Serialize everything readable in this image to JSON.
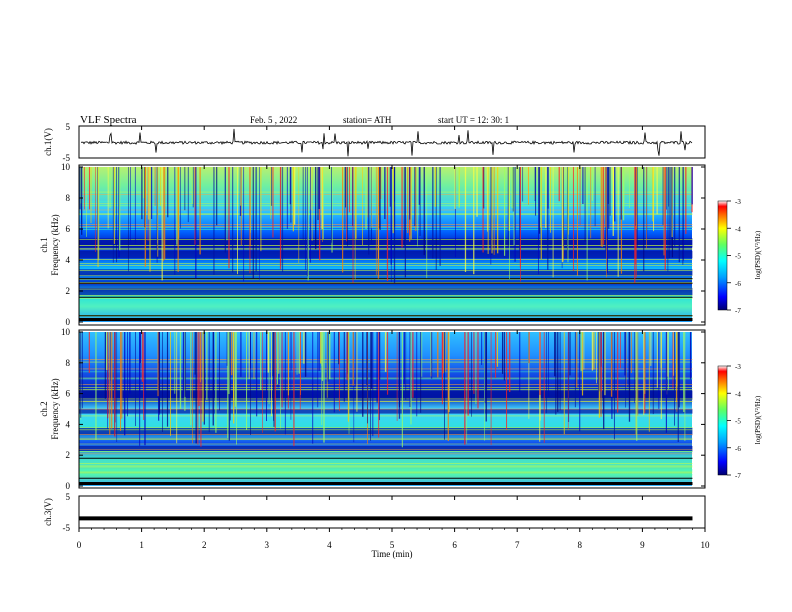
{
  "header": {
    "title": "VLF Spectra",
    "date": "Feb. 5 , 2022",
    "station": "station= ATH",
    "start": "start  UT  =   12: 30: 1"
  },
  "chart_data": [
    {
      "type": "line",
      "ylabel": "ch.1(V)",
      "ylim": [
        -5,
        5
      ],
      "yticks": [
        "5",
        "-5"
      ],
      "description_level": -0.2,
      "color": "#000000"
    },
    {
      "type": "heatmap",
      "ylabel_lines": [
        "ch.1",
        "Frequency  (kHz)"
      ],
      "ylim": [
        0,
        10
      ],
      "yticks": [
        "0",
        "2",
        "4",
        "6",
        "8",
        "10"
      ],
      "colorbar": {
        "label": "log(PSD)(V²/Hz)",
        "range": [
          -7,
          -3
        ],
        "ticks": [
          "-3",
          "-4",
          "-5",
          "-6",
          "-7"
        ]
      }
    },
    {
      "type": "heatmap",
      "ylabel_lines": [
        "ch.2",
        "Frequency  (kHz)"
      ],
      "ylim": [
        0,
        10
      ],
      "yticks": [
        "0",
        "2",
        "4",
        "6",
        "8",
        "10"
      ],
      "colorbar": {
        "label": "log(PSD)(V²/Hz)",
        "range": [
          -7,
          -3
        ],
        "ticks": [
          "-3",
          "-4",
          "-5",
          "-6",
          "-7"
        ]
      }
    },
    {
      "type": "line",
      "ylabel": "ch.3(V)",
      "ylim": [
        -5,
        5
      ],
      "yticks": [
        "5",
        "-5"
      ],
      "level": -2,
      "color": "#000000"
    }
  ],
  "xaxis": {
    "label": "Time  (min)",
    "range": [
      0,
      10
    ],
    "ticks": [
      "0",
      "1",
      "2",
      "3",
      "4",
      "5",
      "6",
      "7",
      "8",
      "9",
      "10"
    ],
    "data_end": 9.8
  }
}
